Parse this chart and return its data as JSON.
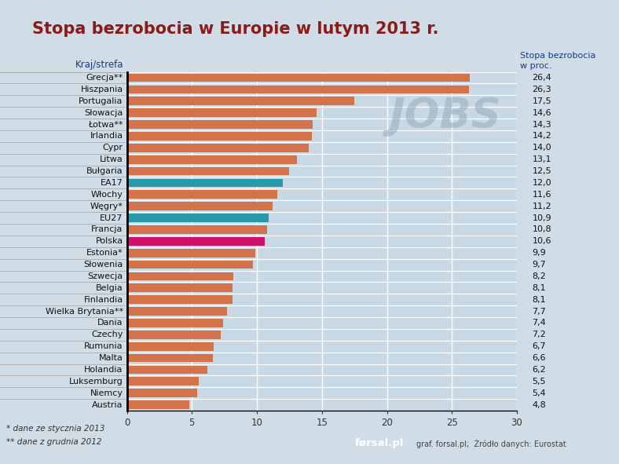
{
  "title": "Stopa bezrobocia w Europie w lutym 2013 r.",
  "title_color": "#8B1A1A",
  "col_left_header": "Kraj/strefa",
  "col_right_header": "Stopa bezrobocia\nw proc.",
  "col_header_color": "#1a3a8a",
  "categories": [
    "Grecja**",
    "Hiszpania",
    "Portugalia",
    "Słowacja",
    "Łotwa**",
    "Irlandia",
    "Cypr",
    "Litwa",
    "Bułgaria",
    "EA17",
    "Włochy",
    "Węgry*",
    "EU27",
    "Francja",
    "Polska",
    "Estonia*",
    "Słowenia",
    "Szwecja",
    "Belgia",
    "Finlandia",
    "Wielka Brytania**",
    "Dania",
    "Czechy",
    "Rumunia",
    "Malta",
    "Holandia",
    "Luksemburg",
    "Niemcy",
    "Austria"
  ],
  "values": [
    26.4,
    26.3,
    17.5,
    14.6,
    14.3,
    14.2,
    14.0,
    13.1,
    12.5,
    12.0,
    11.6,
    11.2,
    10.9,
    10.8,
    10.6,
    9.9,
    9.7,
    8.2,
    8.1,
    8.1,
    7.7,
    7.4,
    7.2,
    6.7,
    6.6,
    6.2,
    5.5,
    5.4,
    4.8
  ],
  "value_labels": [
    "26,4",
    "26,3",
    "17,5",
    "14,6",
    "14,3",
    "14,2",
    "14,0",
    "13,1",
    "12,5",
    "12,0",
    "11,6",
    "11,2",
    "10,9",
    "10,8",
    "10,6",
    "9,9",
    "9,7",
    "8,2",
    "8,1",
    "8,1",
    "7,7",
    "7,4",
    "7,2",
    "6,7",
    "6,6",
    "6,2",
    "5,5",
    "5,4",
    "4,8"
  ],
  "bar_colors": [
    "#d4724a",
    "#d4724a",
    "#d4724a",
    "#d4724a",
    "#d4724a",
    "#d4724a",
    "#d4724a",
    "#d4724a",
    "#d4724a",
    "#2899a8",
    "#d4724a",
    "#d4724a",
    "#2899a8",
    "#d4724a",
    "#cc1166",
    "#d4724a",
    "#d4724a",
    "#d4724a",
    "#d4724a",
    "#d4724a",
    "#d4724a",
    "#d4724a",
    "#d4724a",
    "#d4724a",
    "#d4724a",
    "#d4724a",
    "#d4724a",
    "#d4724a",
    "#d4724a"
  ],
  "xlim": [
    0,
    30
  ],
  "xticks": [
    0,
    5,
    10,
    15,
    20,
    25,
    30
  ],
  "footnote1": "* dane ze stycznia 2013",
  "footnote2": "** dane z grudnia 2012",
  "source_text": "graf. forsal.pl;  Żródło danych: Eurostat",
  "forsal_text": "førsal.pl",
  "jobs_text": "JOBS",
  "label_bg_color": "#e8e8e8",
  "chart_bg_color": "#c8d8e4",
  "fig_bg_color": "#d0dce6",
  "grid_color": "#ffffff",
  "separator_color": "#aaaaaa",
  "forsal_bg": "#8B1A1A"
}
